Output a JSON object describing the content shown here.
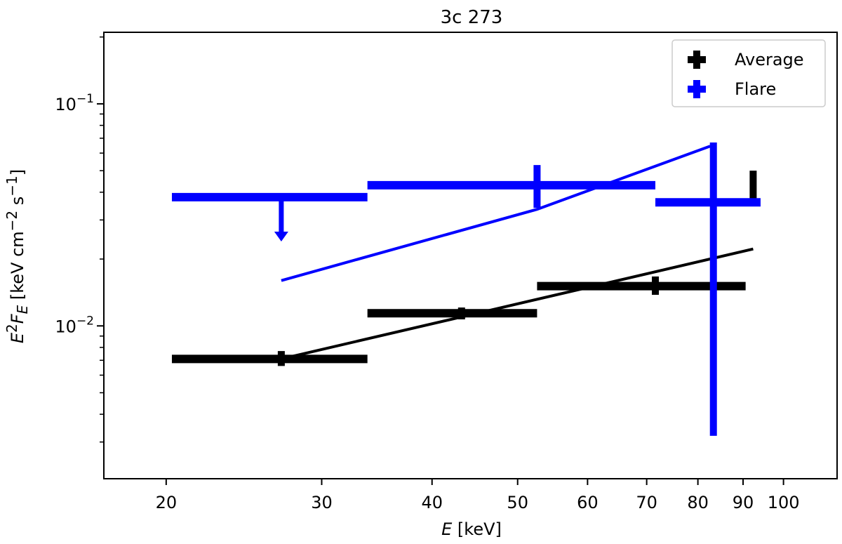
{
  "chart_data": {
    "type": "scatter",
    "title": "3c 273",
    "x_axis": {
      "scale": "log",
      "range": [
        17,
        115
      ],
      "label_var": "E",
      "label_unit": " [keV]",
      "ticks": [
        {
          "value": 20,
          "label": "20"
        },
        {
          "value": 30,
          "label": "30"
        },
        {
          "value": 40,
          "label": "40"
        },
        {
          "value": 50,
          "label": "50"
        },
        {
          "value": 60,
          "label": "60"
        },
        {
          "value": 70,
          "label": "70"
        },
        {
          "value": 80,
          "label": "80"
        },
        {
          "value": 90,
          "label": "90"
        },
        {
          "value": 100,
          "label": "100"
        }
      ]
    },
    "y_axis": {
      "scale": "log",
      "range": [
        0.00205,
        0.21
      ],
      "major_ticks": [
        {
          "value": 0.01,
          "base": "10",
          "exp": "−2"
        },
        {
          "value": 0.1,
          "base": "10",
          "exp": "−1"
        }
      ],
      "minor_ticks": [
        0.003,
        0.004,
        0.005,
        0.006,
        0.007,
        0.008,
        0.009,
        0.02,
        0.03,
        0.04,
        0.05,
        0.06,
        0.07,
        0.08,
        0.09,
        0.2
      ],
      "label_parts": {
        "E": "E",
        "sup2": "2",
        "F": "F",
        "sub": "E",
        "unit_a": " [keV cm",
        "sup_a": "−2",
        "unit_b": " s",
        "sup_b": "−1",
        "unit_c": "]"
      }
    },
    "legend": {
      "placement": "top-right",
      "entries": [
        {
          "label": "Average",
          "color": "#000000"
        },
        {
          "label": "Flare",
          "color": "#0000ff"
        }
      ]
    },
    "series": [
      {
        "name": "Average",
        "color": "#000000",
        "points": [
          {
            "x": 27,
            "xlo": 20.3,
            "xhi": 33.8,
            "y": 0.0071,
            "ylo": 0.0066,
            "yhi": 0.0077
          },
          {
            "x": 43.2,
            "xlo": 33.8,
            "xhi": 52.6,
            "y": 0.0114,
            "ylo": 0.0107,
            "yhi": 0.0121
          },
          {
            "x": 71.6,
            "xlo": 52.6,
            "xhi": 90.6,
            "y": 0.0151,
            "ylo": 0.0138,
            "yhi": 0.0167
          },
          {
            "x": 92.4,
            "xlo": 91.7,
            "xhi": 93.1,
            "y": 0.042,
            "ylo": 0.036,
            "yhi": 0.05
          }
        ],
        "model_line": {
          "x": [
            27,
            92.4
          ],
          "y": [
            0.0071,
            0.0222
          ]
        }
      },
      {
        "name": "Flare",
        "color": "#0000ff",
        "points": [
          {
            "x": 27,
            "xlo": 20.3,
            "xhi": 33.8,
            "y": 0.038,
            "upper_limit": true,
            "arrow_to": 0.024
          },
          {
            "x": 52.6,
            "xlo": 33.8,
            "xhi": 71.6,
            "y": 0.043,
            "ylo": 0.034,
            "yhi": 0.053
          },
          {
            "x": 83.3,
            "xlo": 71.6,
            "xhi": 94.2,
            "y": 0.036,
            "ylo": 0.0032,
            "yhi": 0.067
          }
        ],
        "model_line": {
          "x": [
            27,
            52.6,
            82.6
          ],
          "y": [
            0.016,
            0.0335,
            0.0645
          ]
        }
      }
    ]
  }
}
